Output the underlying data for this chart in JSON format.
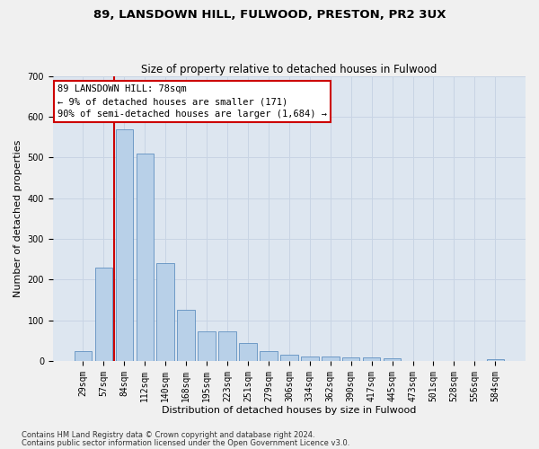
{
  "title1": "89, LANSDOWN HILL, FULWOOD, PRESTON, PR2 3UX",
  "title2": "Size of property relative to detached houses in Fulwood",
  "xlabel": "Distribution of detached houses by size in Fulwood",
  "ylabel": "Number of detached properties",
  "categories": [
    "29sqm",
    "57sqm",
    "84sqm",
    "112sqm",
    "140sqm",
    "168sqm",
    "195sqm",
    "223sqm",
    "251sqm",
    "279sqm",
    "306sqm",
    "334sqm",
    "362sqm",
    "390sqm",
    "417sqm",
    "445sqm",
    "473sqm",
    "501sqm",
    "528sqm",
    "556sqm",
    "584sqm"
  ],
  "values": [
    25,
    230,
    570,
    510,
    240,
    125,
    72,
    72,
    45,
    25,
    15,
    12,
    10,
    8,
    8,
    6,
    0,
    0,
    0,
    0,
    5
  ],
  "bar_color": "#b8d0e8",
  "bar_edge_color": "#6090c0",
  "bar_width": 0.85,
  "vline_color": "#cc0000",
  "annotation_text": "89 LANSDOWN HILL: 78sqm\n← 9% of detached houses are smaller (171)\n90% of semi-detached houses are larger (1,684) →",
  "annotation_box_color": "#ffffff",
  "annotation_box_edge": "#cc0000",
  "ylim": [
    0,
    700
  ],
  "yticks": [
    0,
    100,
    200,
    300,
    400,
    500,
    600,
    700
  ],
  "grid_color": "#c8d4e4",
  "bg_color": "#dde6f0",
  "fig_bg_color": "#f0f0f0",
  "footer1": "Contains HM Land Registry data © Crown copyright and database right 2024.",
  "footer2": "Contains public sector information licensed under the Open Government Licence v3.0.",
  "title1_fontsize": 9.5,
  "title2_fontsize": 8.5,
  "xlabel_fontsize": 8.0,
  "ylabel_fontsize": 8.0,
  "tick_fontsize": 7.0,
  "annot_fontsize": 7.5,
  "footer_fontsize": 6.0
}
